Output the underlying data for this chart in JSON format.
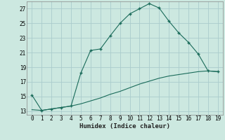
{
  "xlabel": "Humidex (Indice chaleur)",
  "bg_color": "#cce8e0",
  "grid_color": "#aacccc",
  "line_color": "#1a6b5a",
  "xlim": [
    -0.5,
    19.5
  ],
  "ylim": [
    12.5,
    28.0
  ],
  "yticks": [
    13,
    15,
    17,
    19,
    21,
    23,
    25,
    27
  ],
  "xticks": [
    0,
    1,
    2,
    3,
    4,
    5,
    6,
    7,
    8,
    9,
    10,
    11,
    12,
    13,
    14,
    15,
    16,
    17,
    18,
    19
  ],
  "line1_x": [
    0,
    1,
    2,
    3,
    4,
    5,
    6,
    7,
    8,
    9,
    10,
    11,
    12,
    13,
    14,
    15,
    16,
    17,
    18,
    19
  ],
  "line1_y": [
    15.2,
    13.1,
    13.3,
    13.5,
    13.7,
    18.2,
    21.3,
    21.5,
    23.3,
    25.0,
    26.3,
    27.0,
    27.7,
    27.1,
    25.3,
    23.7,
    22.4,
    20.8,
    18.5,
    18.4
  ],
  "line2_x": [
    0,
    1,
    2,
    3,
    4,
    5,
    6,
    7,
    8,
    9,
    10,
    11,
    12,
    13,
    14,
    15,
    16,
    17,
    18,
    19
  ],
  "line2_y": [
    13.2,
    13.1,
    13.3,
    13.5,
    13.7,
    14.0,
    14.4,
    14.8,
    15.3,
    15.7,
    16.2,
    16.7,
    17.1,
    17.5,
    17.8,
    18.0,
    18.2,
    18.4,
    18.5,
    18.4
  ]
}
